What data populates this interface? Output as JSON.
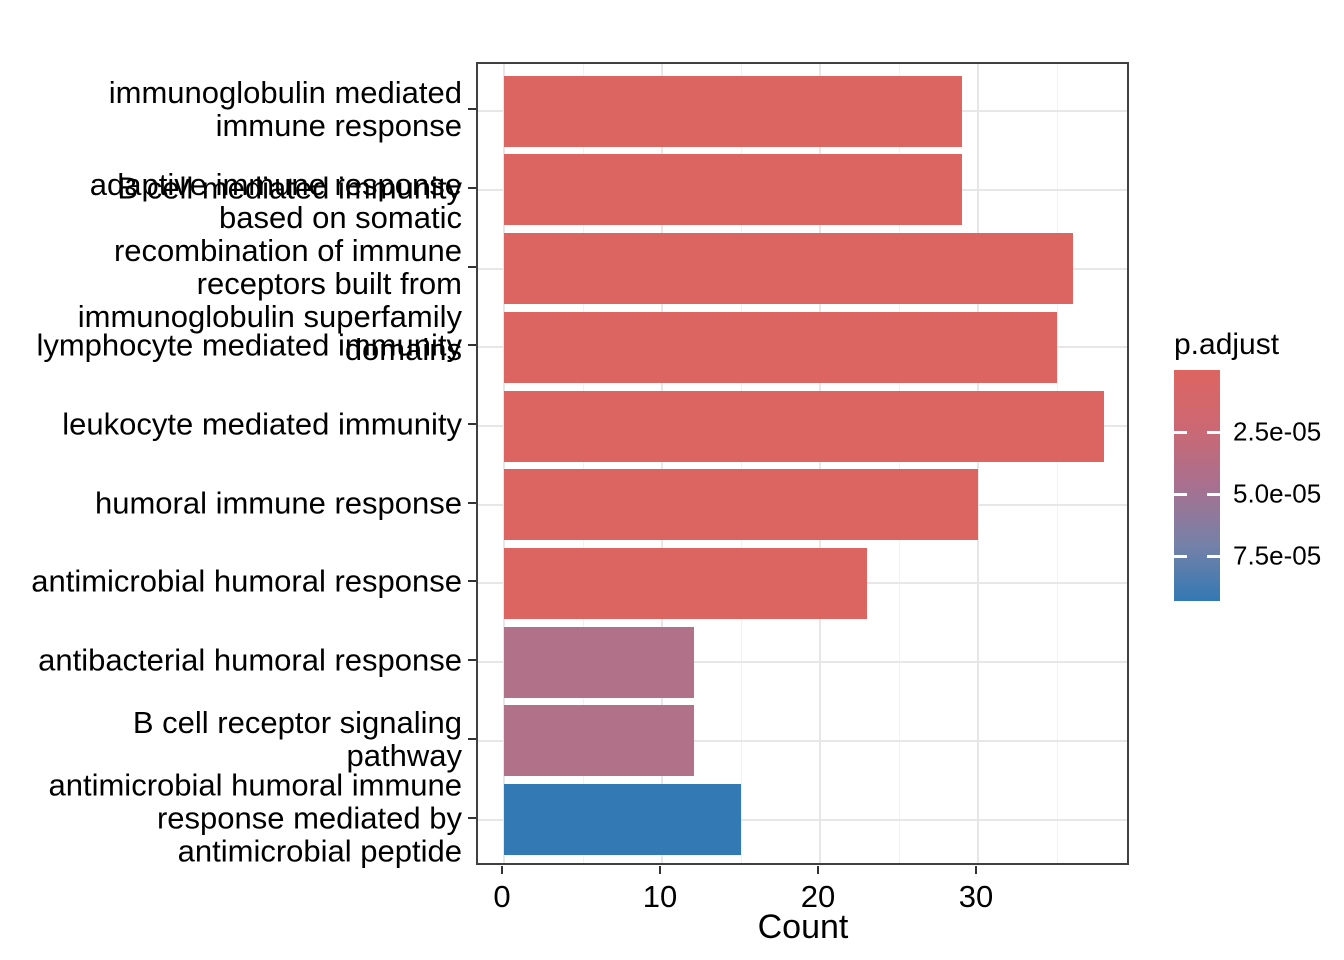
{
  "chart_data": {
    "type": "bar",
    "orientation": "horizontal",
    "xlabel": "Count",
    "x_ticks": [
      0,
      10,
      20,
      30
    ],
    "x_minor_ticks": [
      5,
      15,
      25,
      35
    ],
    "xlim": [
      -1.6,
      39.7
    ],
    "categories": [
      {
        "label": "immunoglobulin mediated\nimmune response",
        "value": 29,
        "color": "#DD6561"
      },
      {
        "label": "B cell mediated immunity",
        "value": 29,
        "color": "#DD6561"
      },
      {
        "label": "adaptive immune response\nbased on somatic\nrecombination of immune\nreceptors built from\nimmunoglobulin superfamily\ndomains",
        "value": 36,
        "color": "#DD6561"
      },
      {
        "label": "lymphocyte mediated immunity",
        "value": 35,
        "color": "#DD6561"
      },
      {
        "label": "leukocyte mediated immunity",
        "value": 38,
        "color": "#DD6561"
      },
      {
        "label": "humoral immune response",
        "value": 30,
        "color": "#DD6561"
      },
      {
        "label": "antimicrobial humoral response",
        "value": 23,
        "color": "#DD6561"
      },
      {
        "label": "antibacterial humoral response",
        "value": 12,
        "color": "#B07189"
      },
      {
        "label": "B cell receptor signaling\npathway",
        "value": 12,
        "color": "#B07189"
      },
      {
        "label": "antimicrobial humoral immune\nresponse mediated by\nantimicrobial peptide",
        "value": 15,
        "color": "#3379B4"
      }
    ],
    "legend": {
      "title": "p.adjust",
      "position": "right",
      "tick_labels": [
        "2.5e-05",
        "5.0e-05",
        "7.5e-05"
      ],
      "tick_values": [
        2.5e-05,
        5e-05,
        7.5e-05
      ],
      "range": [
        0,
        9.3e-05
      ],
      "gradient": [
        "#DD6561",
        "#CC6873",
        "#A8708F",
        "#7781A8",
        "#3379B4"
      ]
    },
    "style": {
      "grid_major": "#E7E7E7",
      "grid_minor": "#F1F1F1",
      "panel_border": "#404040",
      "background": "#FFFFFF",
      "text": "#000000"
    }
  }
}
